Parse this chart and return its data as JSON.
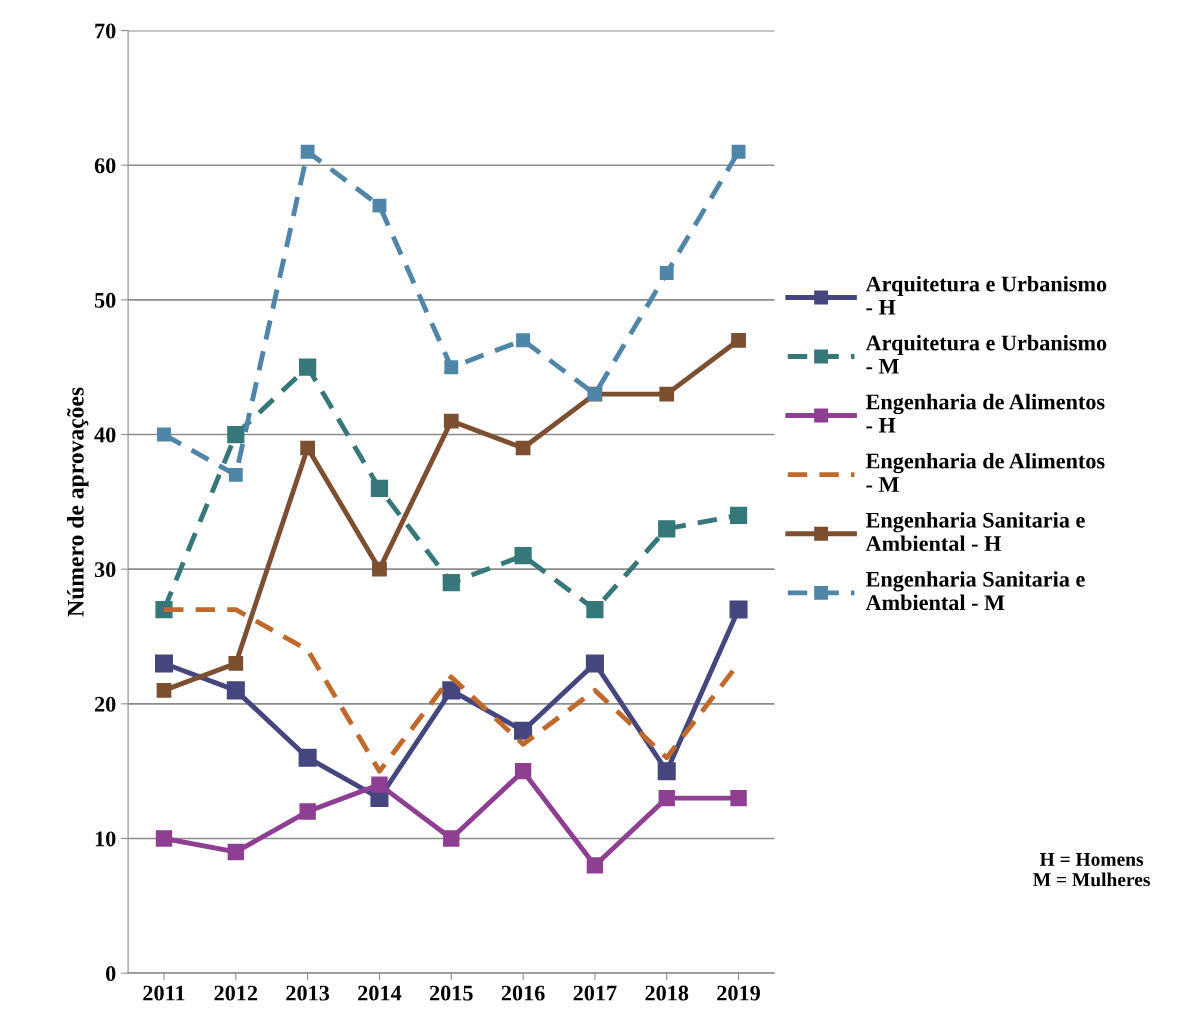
{
  "chart_data": {
    "type": "line",
    "ylabel": "Número de aprovações",
    "categories": [
      "2011",
      "2012",
      "2013",
      "2014",
      "2015",
      "2016",
      "2017",
      "2018",
      "2019"
    ],
    "ylim": [
      0,
      70
    ],
    "yticks": [
      0,
      10,
      20,
      30,
      40,
      50,
      60,
      70
    ],
    "grid": "y",
    "legend": "right",
    "annotations": [
      "H = Homens",
      "M = Mulheres"
    ],
    "series": [
      {
        "name": "Arquitetura e Urbanismo - H",
        "color": "#46467f",
        "marker": "square",
        "line_style": "solid",
        "values": [
          23,
          21,
          16,
          13,
          21,
          18,
          23,
          15,
          27
        ]
      },
      {
        "name": "Arquitetura e Urbanismo - M",
        "color": "#36787a",
        "marker": "square",
        "line_style": "dashed",
        "values": [
          27,
          40,
          45,
          36,
          29,
          31,
          27,
          33,
          34
        ]
      },
      {
        "name": "Engenharia de Alimentos - H",
        "color": "#8e3f92",
        "marker": "square",
        "line_style": "solid",
        "values": [
          10,
          9,
          12,
          14,
          10,
          15,
          8,
          13,
          13
        ]
      },
      {
        "name": "Engenharia de Alimentos - M",
        "color": "#c0692d",
        "marker": "none",
        "line_style": "dashed",
        "values": [
          27,
          27,
          24,
          15,
          22,
          17,
          21,
          16,
          23
        ]
      },
      {
        "name": "Engenharia Sanitaria e Ambiental - H",
        "color": "#7b4f2f",
        "marker": "square",
        "line_style": "solid",
        "values": [
          21,
          23,
          39,
          30,
          41,
          39,
          43,
          43,
          47
        ]
      },
      {
        "name": "Engenharia Sanitaria e Ambiental - M",
        "color": "#4f86a8",
        "marker": "square",
        "line_style": "dashed",
        "values": [
          40,
          37,
          61,
          57,
          45,
          47,
          43,
          52,
          61
        ]
      }
    ]
  }
}
